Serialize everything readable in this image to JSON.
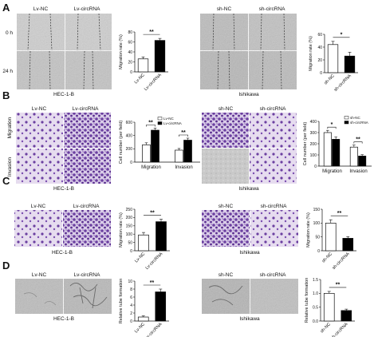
{
  "panels": [
    {
      "letter": "A",
      "images": [
        {
          "headers": [
            "Lv-NC",
            "Lv-circRNA"
          ],
          "row_labels": [
            "0 h",
            "24 h"
          ],
          "caption": "HEC-1-B",
          "type": "wound"
        },
        {
          "headers": [
            "sh-NC",
            "sh-circRNA"
          ],
          "row_labels": [],
          "caption": "Ishikawa",
          "type": "wound"
        }
      ]
    },
    {
      "letter": "B",
      "images": [
        {
          "headers": [
            "Lv-NC",
            "Lv-circRNA"
          ],
          "row_labels": [
            "Migration",
            "Invasion"
          ],
          "caption": "HEC-1-B",
          "type": "transwell"
        },
        {
          "headers": [
            "sh-NC",
            "sh-circRNA"
          ],
          "row_labels": [],
          "caption": "Ishikawa",
          "type": "transwell"
        }
      ]
    },
    {
      "letter": "C",
      "images": [
        {
          "headers": [
            "Lv-NC",
            "Lv-circRNA"
          ],
          "row_labels": [],
          "caption": "HEC-1-B",
          "type": "transwell"
        },
        {
          "headers": [
            "sh-NC",
            "sh-circRNA"
          ],
          "row_labels": [],
          "caption": "Ishikawa",
          "type": "transwell"
        }
      ]
    },
    {
      "letter": "D",
      "images": [
        {
          "headers": [
            "Lv-NC",
            "Lv-circRNA"
          ],
          "row_labels": [],
          "caption": "HEC-1-B",
          "type": "tube"
        },
        {
          "headers": [
            "sh-NC",
            "sh-circRNA"
          ],
          "row_labels": [],
          "caption": "Ishikawa",
          "type": "tube"
        }
      ]
    }
  ],
  "colors": {
    "black_bar": "#000000",
    "white_bar": "#ffffff",
    "stain": "#6b3fa0"
  },
  "chart_data": [
    {
      "id": "A-left",
      "type": "bar",
      "ylabel": "Migration rate (%)",
      "ylim": [
        0,
        80
      ],
      "yticks": [
        0,
        20,
        40,
        60,
        80
      ],
      "categories": [
        "Lv-NC",
        "Lv-circRNA"
      ],
      "values": [
        26,
        63
      ],
      "errors": [
        4,
        4
      ],
      "fills": [
        "white",
        "black"
      ],
      "significance": [
        "**"
      ]
    },
    {
      "id": "A-right",
      "type": "bar",
      "ylabel": "Migration rate (%)",
      "ylim": [
        0,
        60
      ],
      "yticks": [
        0,
        20,
        40,
        60
      ],
      "categories": [
        "sh-NC",
        "sh-circRNA"
      ],
      "values": [
        44,
        26
      ],
      "errors": [
        5,
        6
      ],
      "fills": [
        "white",
        "black"
      ],
      "significance": [
        "*"
      ]
    },
    {
      "id": "B-left",
      "type": "bar",
      "ylabel": "Cell number (per field)",
      "ylim": [
        0,
        600
      ],
      "yticks": [
        0,
        200,
        400,
        600
      ],
      "categories": [
        "Migration",
        "Invasion"
      ],
      "legend": [
        "Lv-NC",
        "Lv-circRNA"
      ],
      "series": [
        {
          "name": "Lv-NC",
          "values": [
            260,
            180
          ],
          "errors": [
            30,
            25
          ]
        },
        {
          "name": "Lv-circRNA",
          "values": [
            480,
            330
          ],
          "errors": [
            30,
            30
          ]
        }
      ],
      "significance": [
        "**",
        "**"
      ]
    },
    {
      "id": "B-right",
      "type": "bar",
      "ylabel": "Cell number (per field)",
      "ylim": [
        0,
        400
      ],
      "yticks": [
        0,
        100,
        200,
        300,
        400
      ],
      "categories": [
        "Migration",
        "Invasion"
      ],
      "legend": [
        "sh-NC",
        "sh-circRNA"
      ],
      "series": [
        {
          "name": "sh-NC",
          "values": [
            300,
            170
          ],
          "errors": [
            20,
            18
          ]
        },
        {
          "name": "sh-circRNA",
          "values": [
            240,
            90
          ],
          "errors": [
            20,
            12
          ]
        }
      ],
      "significance": [
        "*",
        "**"
      ]
    },
    {
      "id": "C-left",
      "type": "bar",
      "ylabel": "Migration rate (%)",
      "ylim": [
        0,
        250
      ],
      "yticks": [
        0,
        50,
        100,
        150,
        200,
        250
      ],
      "categories": [
        "Lv-NC",
        "Lv-circRNA"
      ],
      "values": [
        95,
        175
      ],
      "errors": [
        15,
        15
      ],
      "fills": [
        "white",
        "black"
      ],
      "significance": [
        "**"
      ]
    },
    {
      "id": "C-right",
      "type": "bar",
      "ylabel": "Migration rate (%)",
      "ylim": [
        0,
        150
      ],
      "yticks": [
        0,
        50,
        100,
        150
      ],
      "categories": [
        "sh-NC",
        "sh-circRNA"
      ],
      "values": [
        100,
        45
      ],
      "errors": [
        12,
        6
      ],
      "fills": [
        "white",
        "black"
      ],
      "significance": [
        "**"
      ]
    },
    {
      "id": "D-left",
      "type": "bar",
      "ylabel": "Relative tube formation",
      "ylim": [
        0,
        10
      ],
      "yticks": [
        0,
        2,
        4,
        6,
        8,
        10
      ],
      "categories": [
        "Lv-NC",
        "Lv-circRNA"
      ],
      "values": [
        1,
        7.3
      ],
      "errors": [
        0.3,
        0.7
      ],
      "fills": [
        "white",
        "black"
      ],
      "significance": [
        "**"
      ]
    },
    {
      "id": "D-right",
      "type": "bar",
      "ylabel": "Relative tube formation",
      "ylim": [
        0,
        1.5
      ],
      "yticks": [
        0.0,
        0.5,
        1.0,
        1.5
      ],
      "categories": [
        "sh-NC",
        "sh-circRNA"
      ],
      "values": [
        1.0,
        0.38
      ],
      "errors": [
        0.07,
        0.05
      ],
      "fills": [
        "white",
        "black"
      ],
      "significance": [
        "**"
      ]
    }
  ]
}
